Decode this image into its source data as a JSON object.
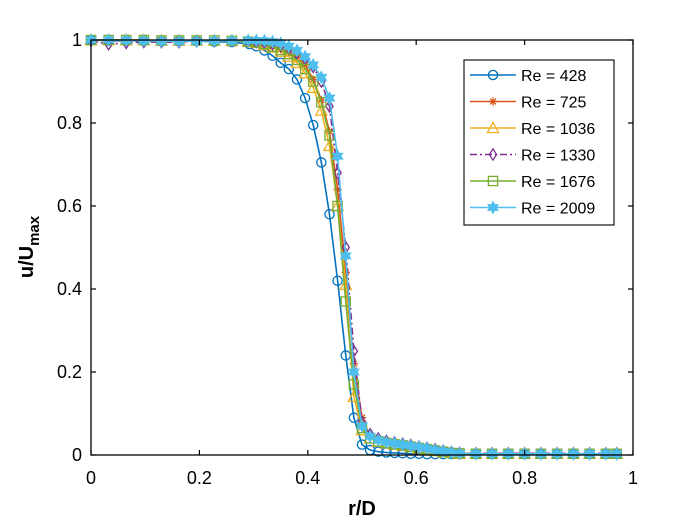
{
  "chart_data": {
    "type": "line",
    "xlabel": "r/D",
    "ylabel_main": "u/U",
    "ylabel_sub": "max",
    "xlim": [
      0,
      1
    ],
    "ylim": [
      0,
      1
    ],
    "xticks": [
      0,
      0.2,
      0.4,
      0.6,
      0.8,
      1
    ],
    "xtick_labels": [
      "0",
      "0.2",
      "0.4",
      "0.6",
      "0.8",
      "1"
    ],
    "yticks": [
      0,
      0.2,
      0.4,
      0.6,
      0.8,
      1
    ],
    "ytick_labels": [
      "0",
      "0.2",
      "0.4",
      "0.6",
      "0.8",
      "1"
    ],
    "grid": false,
    "legend_position": "top-right",
    "series": [
      {
        "name": "Re = 428",
        "color": "#0072BD",
        "marker": "circle",
        "line": "solid",
        "x": [
          0,
          0.0325,
          0.065,
          0.0975,
          0.13,
          0.1625,
          0.195,
          0.2275,
          0.26,
          0.2925,
          0.305,
          0.32,
          0.335,
          0.35,
          0.365,
          0.38,
          0.395,
          0.41,
          0.425,
          0.44,
          0.455,
          0.47,
          0.485,
          0.5,
          0.515,
          0.53,
          0.545,
          0.56,
          0.575,
          0.59,
          0.605,
          0.62,
          0.635,
          0.65,
          0.665,
          0.68,
          0.71,
          0.74,
          0.77,
          0.8,
          0.83,
          0.86,
          0.89,
          0.92,
          0.95,
          0.97
        ],
        "y": [
          1,
          0.998,
          0.998,
          0.998,
          0.997,
          0.997,
          0.997,
          0.996,
          0.995,
          0.99,
          0.985,
          0.975,
          0.962,
          0.945,
          0.93,
          0.905,
          0.86,
          0.795,
          0.705,
          0.58,
          0.42,
          0.24,
          0.09,
          0.025,
          0.012,
          0.008,
          0.006,
          0.005,
          0.004,
          0.003,
          0.003,
          0.002,
          0.002,
          0.002,
          0.002,
          0.002,
          0.002,
          0.002,
          0.002,
          0.002,
          0.002,
          0.002,
          0.002,
          0.002,
          0.002,
          0.002
        ]
      },
      {
        "name": "Re = 725",
        "color": "#D95319",
        "marker": "asterisk",
        "line": "solid",
        "x": [
          0,
          0.0325,
          0.065,
          0.0975,
          0.13,
          0.1625,
          0.195,
          0.2275,
          0.26,
          0.29,
          0.305,
          0.32,
          0.335,
          0.35,
          0.365,
          0.38,
          0.395,
          0.41,
          0.425,
          0.44,
          0.455,
          0.47,
          0.485,
          0.5,
          0.515,
          0.53,
          0.545,
          0.56,
          0.575,
          0.59,
          0.605,
          0.62,
          0.635,
          0.65,
          0.665,
          0.68,
          0.71,
          0.74,
          0.77,
          0.8,
          0.83,
          0.86,
          0.89,
          0.92,
          0.95,
          0.97
        ],
        "y": [
          1,
          1,
          0.999,
          0.999,
          0.999,
          0.999,
          0.999,
          0.999,
          0.998,
          0.996,
          0.994,
          0.99,
          0.985,
          0.978,
          0.97,
          0.958,
          0.94,
          0.905,
          0.855,
          0.78,
          0.64,
          0.44,
          0.22,
          0.09,
          0.045,
          0.035,
          0.03,
          0.026,
          0.023,
          0.02,
          0.017,
          0.014,
          0.011,
          0.008,
          0.006,
          0.004,
          0.003,
          0.003,
          0.003,
          0.003,
          0.003,
          0.003,
          0.003,
          0.003,
          0.003,
          0.003
        ]
      },
      {
        "name": "Re = 1036",
        "color": "#EDB120",
        "marker": "triangle",
        "line": "solid",
        "x": [
          0,
          0.0325,
          0.065,
          0.0975,
          0.13,
          0.1625,
          0.195,
          0.2275,
          0.26,
          0.29,
          0.305,
          0.32,
          0.335,
          0.35,
          0.365,
          0.38,
          0.395,
          0.41,
          0.425,
          0.44,
          0.455,
          0.47,
          0.485,
          0.5,
          0.515,
          0.53,
          0.545,
          0.56,
          0.575,
          0.59,
          0.605,
          0.62,
          0.635,
          0.65,
          0.665,
          0.68,
          0.71,
          0.74,
          0.77,
          0.8,
          0.83,
          0.86,
          0.89,
          0.92,
          0.95,
          0.97
        ],
        "y": [
          1,
          1,
          1,
          1,
          0.999,
          0.999,
          0.999,
          0.999,
          0.998,
          0.996,
          0.993,
          0.988,
          0.982,
          0.972,
          0.96,
          0.945,
          0.92,
          0.885,
          0.83,
          0.745,
          0.6,
          0.41,
          0.14,
          0.06,
          0.04,
          0.032,
          0.028,
          0.025,
          0.022,
          0.019,
          0.016,
          0.013,
          0.01,
          0.007,
          0.005,
          0.003,
          0.003,
          0.003,
          0.003,
          0.003,
          0.003,
          0.003,
          0.003,
          0.003,
          0.003,
          0.003
        ]
      },
      {
        "name": "Re = 1330",
        "color": "#7E2F8E",
        "marker": "diamond",
        "line": "dashdot",
        "x": [
          0,
          0.0325,
          0.065,
          0.0975,
          0.13,
          0.1625,
          0.195,
          0.2275,
          0.26,
          0.29,
          0.305,
          0.32,
          0.335,
          0.35,
          0.365,
          0.38,
          0.395,
          0.41,
          0.425,
          0.44,
          0.455,
          0.47,
          0.485,
          0.5,
          0.515,
          0.53,
          0.545,
          0.56,
          0.575,
          0.59,
          0.605,
          0.62,
          0.635,
          0.65,
          0.665,
          0.68,
          0.71,
          0.74,
          0.77,
          0.8,
          0.83,
          0.86,
          0.89,
          0.92,
          0.95,
          0.97
        ],
        "y": [
          0.998,
          0.99,
          0.993,
          0.995,
          0.995,
          0.995,
          0.997,
          0.997,
          0.998,
          0.997,
          0.995,
          0.993,
          0.99,
          0.985,
          0.978,
          0.968,
          0.955,
          0.935,
          0.9,
          0.84,
          0.68,
          0.5,
          0.25,
          0.08,
          0.05,
          0.04,
          0.034,
          0.03,
          0.027,
          0.024,
          0.02,
          0.017,
          0.014,
          0.01,
          0.007,
          0.005,
          0.004,
          0.004,
          0.004,
          0.004,
          0.004,
          0.004,
          0.004,
          0.004,
          0.004,
          0.004
        ]
      },
      {
        "name": "Re = 1676",
        "color": "#77AC30",
        "marker": "square",
        "line": "solid",
        "x": [
          0,
          0.0325,
          0.065,
          0.0975,
          0.13,
          0.1625,
          0.195,
          0.2275,
          0.26,
          0.29,
          0.305,
          0.32,
          0.335,
          0.35,
          0.365,
          0.38,
          0.395,
          0.41,
          0.425,
          0.44,
          0.455,
          0.47,
          0.485,
          0.5,
          0.515,
          0.53,
          0.545,
          0.56,
          0.575,
          0.59,
          0.605,
          0.62,
          0.635,
          0.65,
          0.665,
          0.68,
          0.71,
          0.74,
          0.77,
          0.8,
          0.83,
          0.86,
          0.89,
          0.92,
          0.95,
          0.97
        ],
        "y": [
          1,
          1,
          1,
          1,
          0.999,
          0.999,
          0.999,
          0.999,
          0.998,
          0.996,
          0.994,
          0.99,
          0.984,
          0.976,
          0.966,
          0.952,
          0.93,
          0.9,
          0.85,
          0.77,
          0.6,
          0.37,
          0.17,
          0.065,
          0.04,
          0.033,
          0.029,
          0.026,
          0.023,
          0.02,
          0.017,
          0.014,
          0.011,
          0.008,
          0.005,
          0.004,
          0.003,
          0.003,
          0.003,
          0.003,
          0.003,
          0.003,
          0.003,
          0.003,
          0.003,
          0.003
        ]
      },
      {
        "name": "Re = 2009",
        "color": "#4DBEEE",
        "marker": "hexagram",
        "line": "solid",
        "x": [
          0,
          0.0325,
          0.065,
          0.0975,
          0.13,
          0.1625,
          0.195,
          0.2275,
          0.26,
          0.29,
          0.305,
          0.32,
          0.335,
          0.35,
          0.365,
          0.38,
          0.395,
          0.41,
          0.425,
          0.44,
          0.455,
          0.47,
          0.485,
          0.5,
          0.515,
          0.53,
          0.545,
          0.56,
          0.575,
          0.59,
          0.605,
          0.62,
          0.635,
          0.65,
          0.665,
          0.68,
          0.71,
          0.74,
          0.77,
          0.8,
          0.83,
          0.86,
          0.89,
          0.92,
          0.95,
          0.97
        ],
        "y": [
          1,
          1,
          0.999,
          0.998,
          0.997,
          0.997,
          0.997,
          0.998,
          0.998,
          0.999,
          0.999,
          0.998,
          0.996,
          0.992,
          0.985,
          0.975,
          0.96,
          0.94,
          0.91,
          0.86,
          0.72,
          0.48,
          0.2,
          0.07,
          0.045,
          0.036,
          0.031,
          0.028,
          0.025,
          0.022,
          0.019,
          0.016,
          0.012,
          0.009,
          0.006,
          0.004,
          0.003,
          0.003,
          0.003,
          0.003,
          0.003,
          0.003,
          0.003,
          0.003,
          0.003,
          0.003
        ]
      }
    ]
  }
}
